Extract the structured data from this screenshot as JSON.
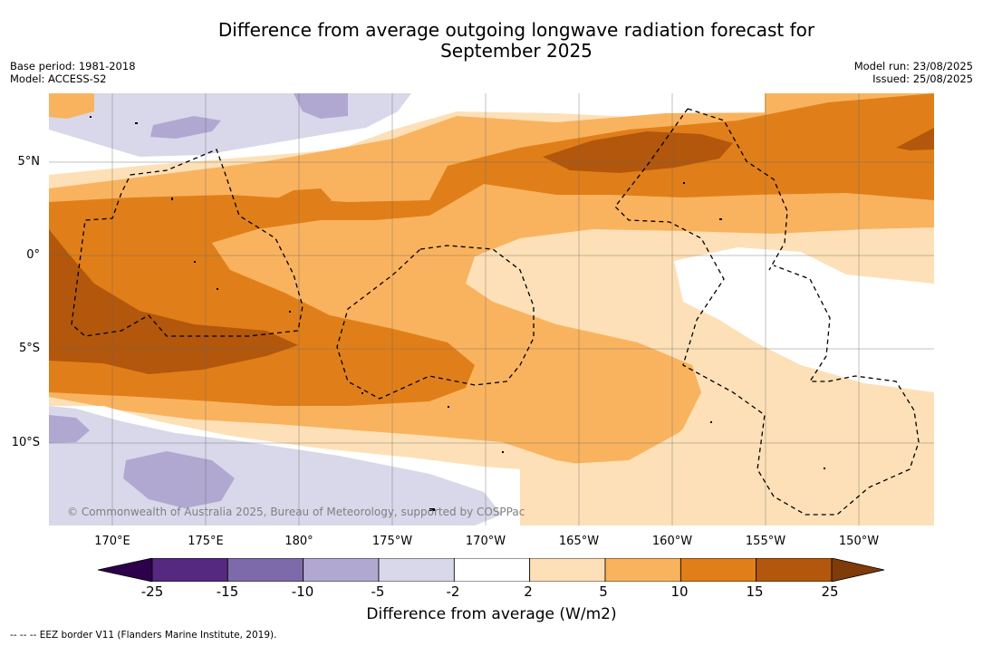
{
  "title_line1": "Difference from average outgoing longwave radiation forecast for",
  "title_line2": "September 2025",
  "base_period": "Base period: 1981-2018",
  "model": "Model: ACCESS-S2",
  "model_run": "Model run: 23/08/2025",
  "issued": "Issued: 25/08/2025",
  "lat_labels": [
    "5°N",
    "0°",
    "5°S",
    "10°S"
  ],
  "lon_labels": [
    "170°E",
    "175°E",
    "180°",
    "175°W",
    "170°W",
    "165°W",
    "160°W",
    "155°W",
    "150°W"
  ],
  "copyright": "© Commonwealth of Australia 2025, Bureau of Meteorology, supported by COSPPac",
  "colorbar": {
    "ticks": [
      "-25",
      "-15",
      "-10",
      "-5",
      "-2",
      "2",
      "5",
      "10",
      "15",
      "25"
    ],
    "colors": [
      "#55297f",
      "#7d6aab",
      "#b0a8d1",
      "#d8d8ea",
      "#ffffff",
      "#fde0b7",
      "#f9b35f",
      "#e07f19",
      "#b2570c"
    ],
    "extend_low_color": "#2d004b",
    "extend_high_color": "#7f3b08",
    "label": "Difference from average (W/m2)"
  },
  "legend_note": "--  --  -- EEZ border V11 (Flanders Marine Institute, 2019)."
}
